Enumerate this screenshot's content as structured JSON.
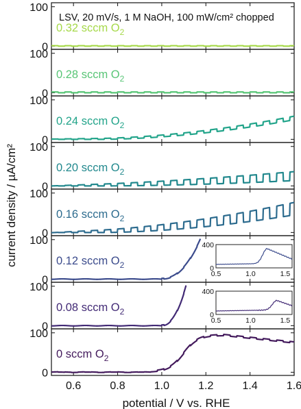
{
  "chart_data": {
    "type": "line",
    "title": "LSV, 20 mV/s, 1 M NaOH, 100 mW/cm² chopped",
    "xlabel": "potential / V vs. RHE",
    "ylabel": "current density / µA/cm²",
    "xlim": [
      0.5,
      1.6
    ],
    "x_ticks": [
      0.6,
      0.8,
      1.0,
      1.2,
      1.4,
      1.6
    ],
    "x_tick_labels": [
      "0.6",
      "0.8",
      "1.0",
      "1.2",
      "1.4",
      "1.6"
    ],
    "ylim": [
      -8,
      110
    ],
    "y_ticks": [
      0,
      100
    ],
    "y_tick_labels": [
      "0",
      "100"
    ],
    "grid": false,
    "panels": [
      {
        "label": "0.32 sccm O",
        "subscript": "2",
        "color": "#a6d94a",
        "shape": {
          "kind": "flat",
          "base": 0,
          "chop": 1.2
        }
      },
      {
        "label": "0.28 sccm O",
        "subscript": "2",
        "color": "#58c576",
        "shape": {
          "kind": "flat",
          "base": 0,
          "chop": 2
        }
      },
      {
        "label": "0.24 sccm O",
        "subscript": "2",
        "color": "#22a48a",
        "shape": {
          "kind": "rise",
          "base": 0,
          "onset": 0.72,
          "end_value": 55,
          "chop_max": 9
        }
      },
      {
        "label": "0.20 sccm O",
        "subscript": "2",
        "color": "#21888d",
        "shape": {
          "kind": "rise",
          "base": 0,
          "onset": 0.72,
          "end_value": 28,
          "chop_max": 24
        }
      },
      {
        "label": "0.16 sccm O",
        "subscript": "2",
        "color": "#2c6b8e",
        "shape": {
          "kind": "rise",
          "base": 0,
          "onset": 0.72,
          "end_value": 65,
          "chop_max": 34
        }
      },
      {
        "label": "0.12 sccm O",
        "subscript": "2",
        "color": "#3b4b8c",
        "shape": {
          "kind": "onset",
          "base": 0,
          "onset": 1.0,
          "end_x": 1.175,
          "end_value": 100
        },
        "inset": {
          "xlim": [
            0.5,
            1.6
          ],
          "ylim": [
            0,
            400
          ],
          "x_tick_labels": [
            "0.5",
            "1.0",
            "1.5"
          ],
          "y_tick_labels": [
            "0",
            "400"
          ],
          "peak_x": 1.24,
          "peak_y": 330
        }
      },
      {
        "label": "0.08 sccm O",
        "subscript": "2",
        "color": "#422a75",
        "shape": {
          "kind": "onset",
          "base": 0,
          "onset": 1.0,
          "end_x": 1.11,
          "end_value": 100
        },
        "inset": {
          "xlim": [
            0.5,
            1.6
          ],
          "ylim": [
            0,
            400
          ],
          "x_tick_labels": [
            "0.5",
            "1.0",
            "1.5"
          ],
          "y_tick_labels": [
            "0",
            "400"
          ],
          "peak_x": 1.38,
          "peak_y": 240
        }
      },
      {
        "label": "0 sccm O",
        "subscript": "2",
        "color": "#431a5c",
        "shape": {
          "kind": "plateau",
          "base": 0,
          "onset": 0.95,
          "peak_x": 1.28,
          "peak_y": 93,
          "end_value": 74,
          "chop": 3
        }
      }
    ]
  }
}
